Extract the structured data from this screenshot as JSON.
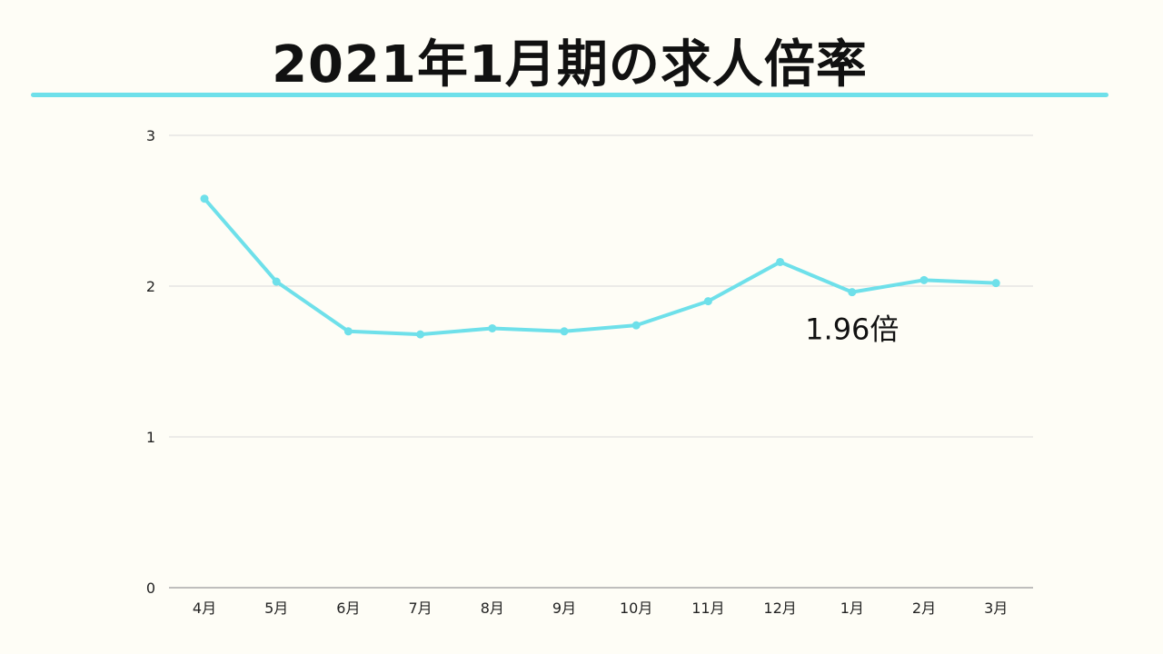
{
  "title": "2021年1月期の求人倍率",
  "colors": {
    "background": "#FEFDF6",
    "accent": "#6EE0EA",
    "grid": "#D9D9D9",
    "axis": "#AAAAAA"
  },
  "chart_data": {
    "type": "line",
    "title": "2021年1月期の求人倍率",
    "xlabel": "",
    "ylabel": "",
    "categories": [
      "4月",
      "5月",
      "6月",
      "7月",
      "8月",
      "9月",
      "10月",
      "11月",
      "12月",
      "1月",
      "2月",
      "3月"
    ],
    "series": [
      {
        "values": [
          2.58,
          2.03,
          1.7,
          1.68,
          1.72,
          1.7,
          1.74,
          1.9,
          2.16,
          1.96,
          2.04,
          2.02
        ]
      }
    ],
    "ylim": [
      0,
      3
    ],
    "yticks": [
      0,
      1,
      2,
      3
    ],
    "grid": true,
    "legend": "none",
    "annotations": [
      {
        "text": "1.96倍",
        "category": "1月"
      }
    ]
  }
}
